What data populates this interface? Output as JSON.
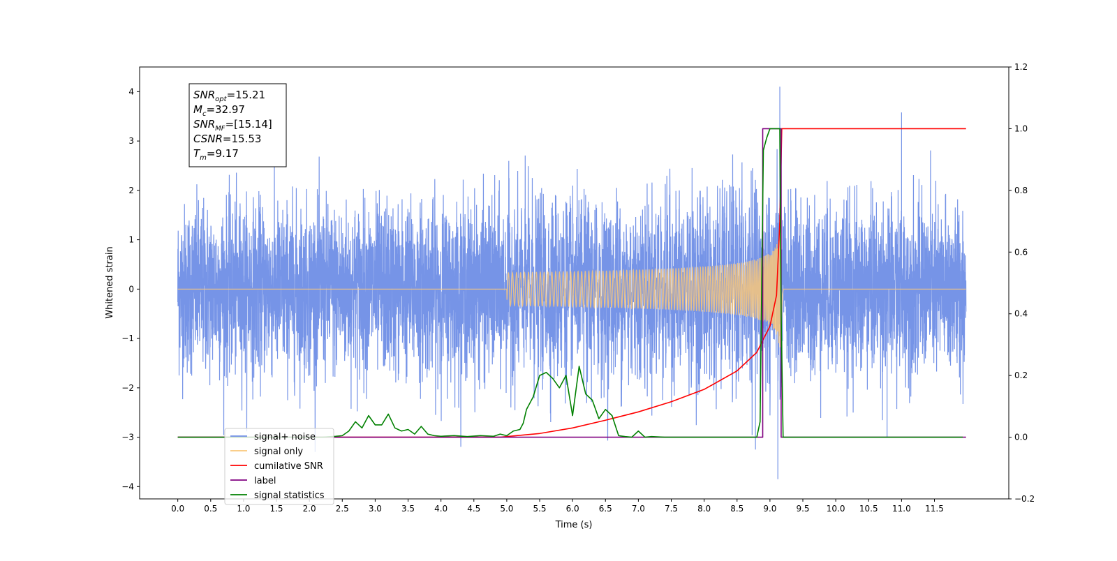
{
  "chart_data": {
    "type": "line",
    "xlabel": "Time (s)",
    "ylabel": "Whitened strain",
    "xlim": [
      -0.58,
      12.63
    ],
    "ylim": [
      -4.25,
      4.5
    ],
    "y2lim": [
      -0.2,
      1.2
    ],
    "x_ticks": [
      "0.0",
      "0.5",
      "1.0",
      "1.5",
      "2.0",
      "2.5",
      "3.0",
      "3.5",
      "4.0",
      "4.5",
      "5.0",
      "5.5",
      "6.0",
      "6.5",
      "7.0",
      "7.5",
      "8.0",
      "8.5",
      "9.0",
      "9.5",
      "10.0",
      "10.5",
      "11.0",
      "11.5"
    ],
    "y_ticks": [
      "4",
      "3",
      "2",
      "1",
      "0",
      "−1",
      "−2",
      "−3",
      "−4"
    ],
    "y_tick_values": [
      4,
      3,
      2,
      1,
      0,
      -1,
      -2,
      -3,
      -4
    ],
    "y2_ticks": [
      "1.2",
      "1.0",
      "0.8",
      "0.6",
      "0.4",
      "0.2",
      "0.0",
      "−0.2"
    ],
    "y2_tick_values": [
      1.2,
      1.0,
      0.8,
      0.6,
      0.4,
      0.2,
      0.0,
      -0.2
    ],
    "grid": false,
    "legend_position": "lower-left",
    "annotation": {
      "lines": [
        {
          "sym": "SNR",
          "sub": "opt",
          "val": "=15.21"
        },
        {
          "sym": "M",
          "sub": "c",
          "val": "=32.97"
        },
        {
          "sym": "SNR",
          "sub": "MF",
          "val": "=[15.14]"
        },
        {
          "sym": "CSNR",
          "sub": "",
          "val": "=15.53"
        },
        {
          "sym": "T",
          "sub": "m",
          "val": "=9.17"
        }
      ]
    },
    "legend": [
      {
        "label": "signal+ noise",
        "color": "#6f8ee6"
      },
      {
        "label": "signal only",
        "color": "#f9c77a"
      },
      {
        "label": "cumilative SNR",
        "color": "#ff0000"
      },
      {
        "label": "label",
        "color": "#800080"
      },
      {
        "label": "signal statistics",
        "color": "#008000"
      }
    ],
    "series": [
      {
        "name": "signal+ noise",
        "axis": "left",
        "color": "#6f8ee6",
        "x_range": [
          0.0,
          11.98
        ],
        "typical_amplitude": 0.85,
        "envelope_max": [
          2.2,
          2.9
        ],
        "envelope_min": [
          -2.3,
          -3.3
        ],
        "peaks": [
          [
            9.15,
            4.1
          ],
          [
            9.12,
            -3.85
          ],
          [
            11.0,
            3.58
          ],
          [
            8.78,
            -3.25
          ],
          [
            10.78,
            -3.0
          ]
        ]
      },
      {
        "name": "signal only",
        "axis": "left",
        "color": "#f9c77a",
        "chirp_start": 5.0,
        "merger_time": 9.17,
        "peak_amplitude": 1.9
      },
      {
        "name": "cumilative SNR",
        "axis": "right",
        "color": "#ff0000",
        "x": [
          0.0,
          4.9,
          5.5,
          6.0,
          6.5,
          7.0,
          7.5,
          8.0,
          8.5,
          8.8,
          9.0,
          9.1,
          9.15,
          9.17,
          9.18,
          11.98
        ],
        "y": [
          0.0,
          0.0,
          0.012,
          0.03,
          0.055,
          0.082,
          0.115,
          0.155,
          0.215,
          0.275,
          0.36,
          0.46,
          0.7,
          0.9,
          1.0,
          1.0
        ]
      },
      {
        "name": "label",
        "axis": "right",
        "color": "#800080",
        "x": [
          0.0,
          8.89,
          8.89,
          9.17,
          9.17,
          11.98
        ],
        "y": [
          0.0,
          0.0,
          1.0,
          1.0,
          0.0,
          0.0
        ]
      },
      {
        "name": "signal statistics",
        "axis": "right",
        "color": "#008000",
        "x": [
          0.0,
          2.2,
          2.4,
          2.5,
          2.6,
          2.7,
          2.8,
          2.9,
          3.0,
          3.1,
          3.2,
          3.3,
          3.4,
          3.5,
          3.6,
          3.7,
          3.8,
          3.9,
          4.0,
          4.2,
          4.4,
          4.6,
          4.8,
          4.9,
          5.0,
          5.1,
          5.2,
          5.25,
          5.3,
          5.4,
          5.5,
          5.6,
          5.7,
          5.8,
          5.9,
          6.0,
          6.1,
          6.2,
          6.3,
          6.4,
          6.5,
          6.6,
          6.7,
          6.8,
          6.9,
          7.0,
          7.1,
          7.2,
          7.4,
          8.5,
          8.8,
          8.85,
          8.9,
          8.95,
          9.0,
          9.15,
          9.17,
          9.2,
          11.93
        ],
        "y": [
          0.0,
          0.0,
          0.003,
          0.005,
          0.02,
          0.05,
          0.03,
          0.07,
          0.04,
          0.04,
          0.075,
          0.03,
          0.02,
          0.025,
          0.01,
          0.035,
          0.01,
          0.005,
          0.003,
          0.005,
          0.002,
          0.005,
          0.003,
          0.01,
          0.005,
          0.02,
          0.025,
          0.045,
          0.09,
          0.13,
          0.2,
          0.21,
          0.19,
          0.16,
          0.2,
          0.07,
          0.23,
          0.14,
          0.12,
          0.06,
          0.09,
          0.07,
          0.005,
          0.002,
          0.0,
          0.02,
          0.0,
          0.002,
          0.0,
          0.0,
          0.0,
          0.05,
          0.93,
          0.97,
          1.0,
          1.0,
          0.4,
          0.0,
          0.0
        ]
      }
    ]
  }
}
